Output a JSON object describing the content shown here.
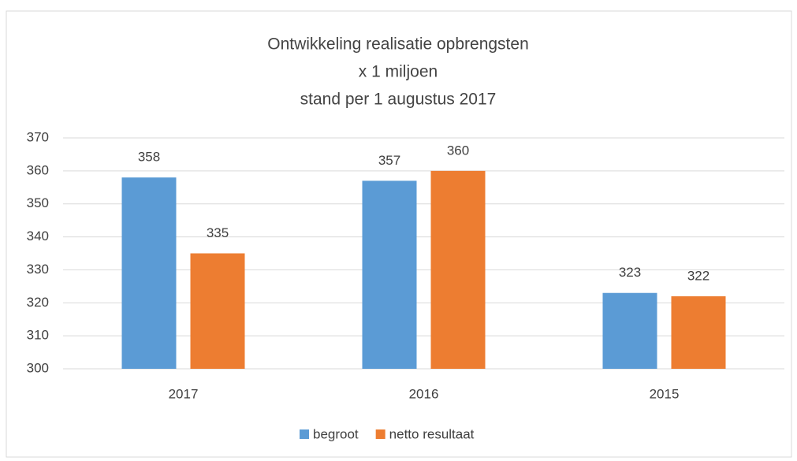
{
  "chart_data": {
    "type": "bar",
    "title": [
      "Ontwikkeling realisatie opbrengsten",
      "x  1 miljoen",
      "stand per 1 augustus 2017"
    ],
    "categories": [
      "2017",
      "2016",
      "2015"
    ],
    "series": [
      {
        "name": "begroot",
        "color": "#5b9bd5",
        "values": [
          358,
          357,
          323
        ]
      },
      {
        "name": "netto resultaat",
        "color": "#ed7d31",
        "values": [
          335,
          360,
          322
        ]
      }
    ],
    "ylim": [
      300,
      370
    ],
    "yticks": [
      300,
      310,
      320,
      330,
      340,
      350,
      360,
      370
    ],
    "grid": true,
    "legend": "bottom"
  }
}
